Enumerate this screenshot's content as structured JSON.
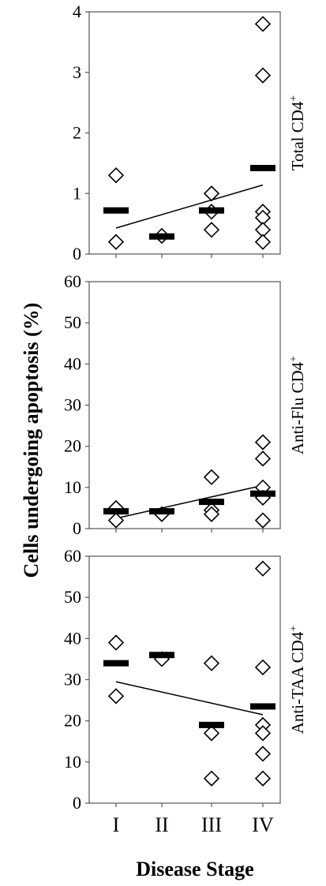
{
  "figure": {
    "ylabel": "Cells undergoing apoptosis (%)",
    "xlabel": "Disease Stage"
  },
  "chart_data": [
    {
      "type": "scatter",
      "panel_label": "Total CD4",
      "panel_label_sup": "+",
      "categories": [
        "I",
        "II",
        "III",
        "IV"
      ],
      "ylim": [
        0,
        4
      ],
      "yticks": [
        0,
        1,
        2,
        3,
        4
      ],
      "points": [
        {
          "x": "I",
          "y": 1.3
        },
        {
          "x": "I",
          "y": 0.2
        },
        {
          "x": "II",
          "y": 0.3
        },
        {
          "x": "III",
          "y": 1.0
        },
        {
          "x": "III",
          "y": 0.7
        },
        {
          "x": "III",
          "y": 0.4
        },
        {
          "x": "IV",
          "y": 3.8
        },
        {
          "x": "IV",
          "y": 2.95
        },
        {
          "x": "IV",
          "y": 0.7
        },
        {
          "x": "IV",
          "y": 0.6
        },
        {
          "x": "IV",
          "y": 0.4
        },
        {
          "x": "IV",
          "y": 0.2
        }
      ],
      "medians": [
        0.72,
        0.29,
        0.72,
        1.42
      ],
      "trend": {
        "start": 0.43,
        "end": 1.14
      }
    },
    {
      "type": "scatter",
      "panel_label": "Anti-Flu CD4",
      "panel_label_sup": "+",
      "categories": [
        "I",
        "II",
        "III",
        "IV"
      ],
      "ylim": [
        0,
        60
      ],
      "yticks": [
        0,
        10,
        20,
        30,
        40,
        50,
        60
      ],
      "points": [
        {
          "x": "I",
          "y": 5
        },
        {
          "x": "I",
          "y": 2
        },
        {
          "x": "II",
          "y": 3.5
        },
        {
          "x": "III",
          "y": 12.5
        },
        {
          "x": "III",
          "y": 4.5
        },
        {
          "x": "III",
          "y": 3.5
        },
        {
          "x": "IV",
          "y": 21
        },
        {
          "x": "IV",
          "y": 17
        },
        {
          "x": "IV",
          "y": 10
        },
        {
          "x": "IV",
          "y": 7.5
        },
        {
          "x": "IV",
          "y": 2
        }
      ],
      "medians": [
        4.2,
        4.2,
        6.5,
        8.5
      ],
      "trend": {
        "start": 2.5,
        "end": 10.5
      }
    },
    {
      "type": "scatter",
      "panel_label": "Anti-TAA CD4",
      "panel_label_sup": "+",
      "categories": [
        "I",
        "II",
        "III",
        "IV"
      ],
      "ylim": [
        0,
        60
      ],
      "yticks": [
        0,
        10,
        20,
        30,
        40,
        50,
        60
      ],
      "points": [
        {
          "x": "I",
          "y": 39
        },
        {
          "x": "I",
          "y": 26
        },
        {
          "x": "II",
          "y": 35
        },
        {
          "x": "III",
          "y": 34
        },
        {
          "x": "III",
          "y": 17
        },
        {
          "x": "III",
          "y": 6
        },
        {
          "x": "IV",
          "y": 57
        },
        {
          "x": "IV",
          "y": 33
        },
        {
          "x": "IV",
          "y": 19
        },
        {
          "x": "IV",
          "y": 17
        },
        {
          "x": "IV",
          "y": 12
        },
        {
          "x": "IV",
          "y": 6
        }
      ],
      "medians": [
        34,
        36,
        19,
        23.5
      ],
      "trend": {
        "start": 29.5,
        "end": 21.5
      }
    }
  ]
}
